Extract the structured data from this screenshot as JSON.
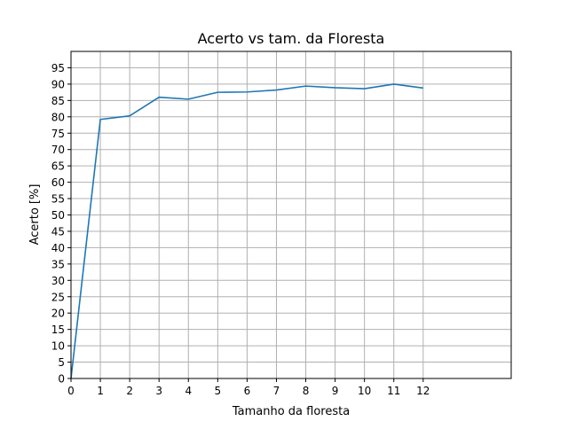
{
  "chart_data": {
    "type": "line",
    "title": "Acerto vs tam. da Floresta",
    "xlabel": "Tamanho da floresta",
    "ylabel": "Acerto [%]",
    "xlim": [
      0,
      15
    ],
    "ylim": [
      0,
      100
    ],
    "xticks": [
      "0",
      "1",
      "2",
      "3",
      "4",
      "5",
      "6",
      "7",
      "8",
      "9",
      "10",
      "11",
      "12"
    ],
    "yticks": [
      "0",
      "5",
      "10",
      "15",
      "20",
      "25",
      "30",
      "35",
      "40",
      "45",
      "50",
      "55",
      "60",
      "65",
      "70",
      "75",
      "80",
      "85",
      "90",
      "95"
    ],
    "grid": true,
    "x": [
      0,
      1,
      2,
      3,
      4,
      5,
      6,
      7,
      8,
      9,
      10,
      11,
      12
    ],
    "series": [
      {
        "values": [
          0,
          79.2,
          80.3,
          86.0,
          85.4,
          87.5,
          87.6,
          88.2,
          89.4,
          88.9,
          88.6,
          90.0,
          88.8
        ],
        "color": "#1f77b4"
      }
    ]
  }
}
